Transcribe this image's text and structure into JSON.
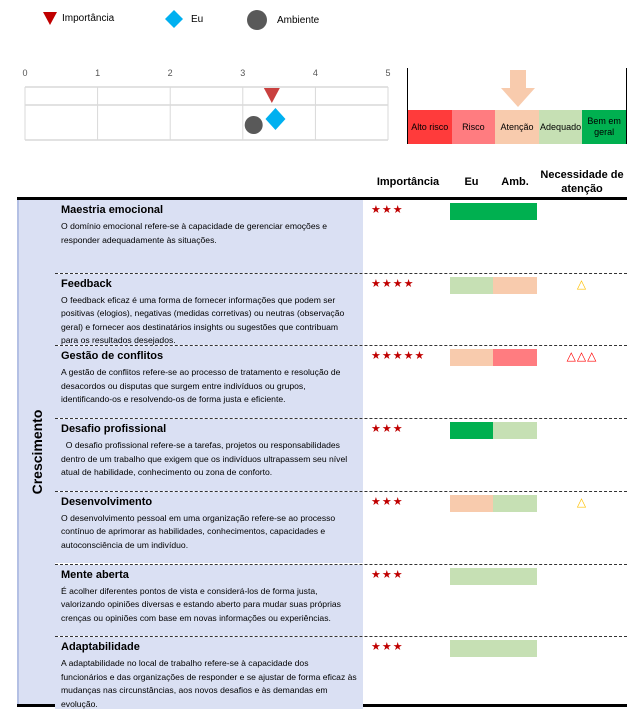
{
  "legend": [
    {
      "label": "Importância",
      "icon": "triangle-down-icon",
      "color": "#c00000"
    },
    {
      "label": "Eu",
      "icon": "diamond-icon",
      "color": "#00b0f0"
    },
    {
      "label": "Ambiente",
      "icon": "circle-icon",
      "color": "#595959"
    }
  ],
  "chart_data": {
    "type": "scatter",
    "x_ticks": [
      "0",
      "1",
      "2",
      "3",
      "4",
      "5"
    ],
    "xlim": [
      0,
      5
    ],
    "series": [
      {
        "name": "Importância",
        "value": 3.4
      },
      {
        "name": "Eu",
        "value": 3.45
      },
      {
        "name": "Ambiente",
        "value": 3.15
      }
    ]
  },
  "scale": {
    "levels": [
      {
        "label": "Alto risco",
        "color": "#ff3b3b"
      },
      {
        "label": "Risco",
        "color": "#ff7c80"
      },
      {
        "label": "Atenção",
        "color": "#f8cbad"
      },
      {
        "label": "Adequado",
        "color": "#c6e0b4"
      },
      {
        "label": "Bem em geral",
        "color": "#00b050"
      }
    ],
    "current_level": 2
  },
  "headers": {
    "importance": "Importância",
    "eu": "Eu",
    "amb": "Amb.",
    "need": "Necessidade de atenção"
  },
  "category": "Crescimento",
  "rows": [
    {
      "title": "Maestria emocional",
      "desc": "O domínio emocional refere-se à capacidade de gerenciar emoções e responder adequadamente às situações.",
      "stars": "★★★",
      "eu": 4,
      "amb": 4,
      "warn": "",
      "warn_color": "#ffc000"
    },
    {
      "title": "Feedback",
      "desc": "O feedback eficaz é uma forma de fornecer informações que podem ser positivas (elogios), negativas (medidas corretivas) ou neutras (observação geral) e fornecer aos destinatários insights ou sugestões que contribuam para os resultados desejados.",
      "stars": "★★★★",
      "eu": 3,
      "amb": 2,
      "warn": "△",
      "warn_color": "#ffc000"
    },
    {
      "title": "Gestão de conflitos",
      "desc": "A gestão de conflitos refere-se ao processo de tratamento e resolução de desacordos ou disputas que surgem entre indivíduos ou grupos, identificando-os e resolvendo-os de forma justa e eficiente.",
      "stars": "★★★★★",
      "eu": 2,
      "amb": 1,
      "warn": "△△△",
      "warn_color": "#ff0000"
    },
    {
      "title": "Desafio profissional",
      "desc": "  O desafio profissional refere-se a tarefas, projetos ou responsabilidades dentro de um trabalho que exigem que os indivíduos ultrapassem seu nível atual de habilidade, conhecimento ou zona de conforto.",
      "stars": "★★★",
      "eu": 4,
      "amb": 3,
      "warn": "",
      "warn_color": "#ffc000"
    },
    {
      "title": "Desenvolvimento",
      "desc": "O desenvolvimento pessoal em uma organização refere-se ao processo contínuo de aprimorar as habilidades, conhecimentos, capacidades e autoconsciência de um indivíduo.",
      "stars": "★★★",
      "eu": 2,
      "amb": 3,
      "warn": "△",
      "warn_color": "#ffc000"
    },
    {
      "title": "Mente aberta",
      "desc": "É acolher diferentes pontos de vista e considerá-los de forma justa, valorizando opiniões diversas e estando aberto para mudar suas próprias crenças ou opiniões com base em novas informações ou experiências.",
      "stars": "★★★",
      "eu": 3,
      "amb": 3,
      "warn": "",
      "warn_color": "#ffc000"
    },
    {
      "title": "Adaptabilidade",
      "desc": "A adaptabilidade no local de trabalho refere-se à capacidade dos funcionários e das organizações de responder e se ajustar de forma eficaz às mudanças nas circunstâncias, aos novos desafios e às demandas em evolução.",
      "stars": "★★★",
      "eu": 3,
      "amb": 3,
      "warn": "",
      "warn_color": "#ffc000"
    }
  ]
}
